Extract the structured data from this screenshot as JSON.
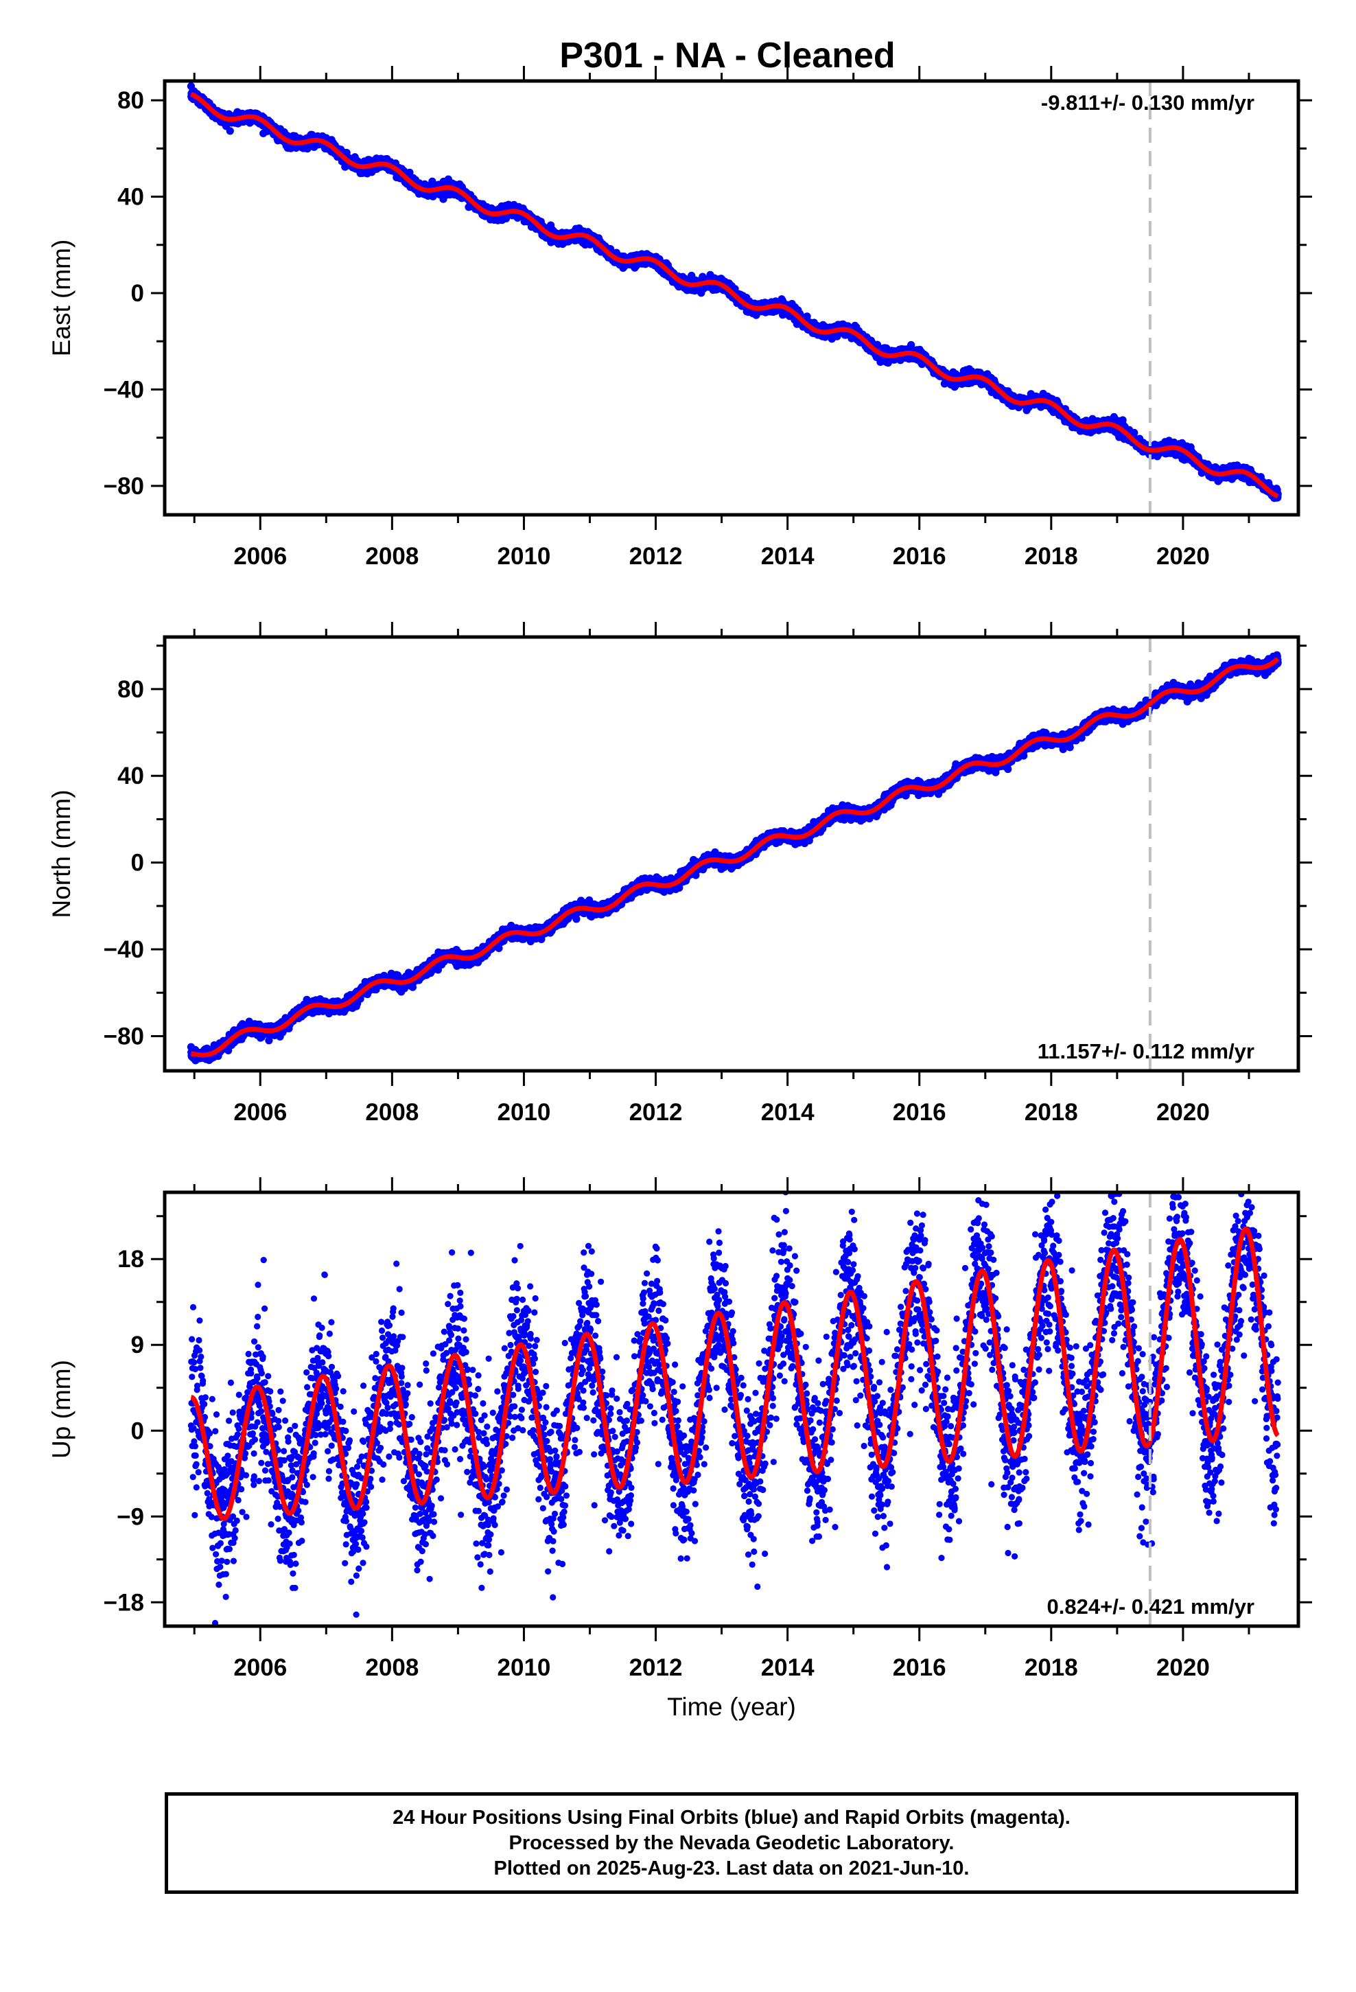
{
  "figure": {
    "title": "P301  - NA - Cleaned",
    "footer": [
      "24 Hour Positions Using Final Orbits (blue) and Rapid Orbits (magenta).",
      "Processed by the Nevada Geodetic Laboratory.",
      "Plotted on 2025-Aug-23. Last data on 2021-Jun-10."
    ]
  },
  "colors": {
    "data_points": "#0000ff",
    "model_fit": "#ff0000",
    "marker_line": "#c0c0c0",
    "frame": "#000000"
  },
  "chart_data": [
    {
      "type": "scatter",
      "component": "east",
      "ylabel": "East (mm)",
      "xlabel": "",
      "rate_label": "-9.811+/- 0.130 mm/yr",
      "rate_position": "top-right",
      "xlim": [
        2004.55,
        2021.75
      ],
      "ylim": [
        -92,
        88
      ],
      "xticks": [
        2006,
        2008,
        2010,
        2012,
        2014,
        2016,
        2018,
        2020
      ],
      "xtick_labels": [
        "2006",
        "2008",
        "2010",
        "2012",
        "2014",
        "2016",
        "2018",
        "2020"
      ],
      "yticks": [
        -80,
        -40,
        0,
        40,
        80
      ],
      "ytick_labels": [
        "−80",
        "−40",
        "0",
        "40",
        "80"
      ],
      "event_marker_x": 2019.5,
      "data_span": [
        2004.95,
        2021.44
      ],
      "fit": {
        "intercept_mm": 80.0,
        "rate_mm_per_yr": -9.811,
        "annual_amp_mm": 2.5,
        "annual_phase": 0.0,
        "scatter_mm": 1.2
      },
      "series": [
        {
          "name": "Final Orbits",
          "type": "scatter",
          "color": "#0000ff"
        },
        {
          "name": "Model",
          "type": "line",
          "color": "#ff0000"
        }
      ]
    },
    {
      "type": "scatter",
      "component": "north",
      "ylabel": "North (mm)",
      "xlabel": "",
      "rate_label": "11.157+/- 0.112 mm/yr",
      "rate_position": "bottom-right",
      "xlim": [
        2004.55,
        2021.75
      ],
      "ylim": [
        -96,
        104
      ],
      "xticks": [
        2006,
        2008,
        2010,
        2012,
        2014,
        2016,
        2018,
        2020
      ],
      "xtick_labels": [
        "2006",
        "2008",
        "2010",
        "2012",
        "2014",
        "2016",
        "2018",
        "2020"
      ],
      "yticks": [
        -80,
        -40,
        0,
        40,
        80
      ],
      "ytick_labels": [
        "−80",
        "−40",
        "0",
        "40",
        "80"
      ],
      "event_marker_x": 2019.5,
      "data_span": [
        2004.95,
        2021.44
      ],
      "fit": {
        "intercept_mm": -89.0,
        "rate_mm_per_yr": 11.157,
        "annual_amp_mm": 2.5,
        "annual_phase": 1.2,
        "scatter_mm": 1.3
      },
      "series": [
        {
          "name": "Final Orbits",
          "type": "scatter",
          "color": "#0000ff"
        },
        {
          "name": "Model",
          "type": "line",
          "color": "#ff0000"
        }
      ]
    },
    {
      "type": "scatter",
      "component": "up",
      "ylabel": "Up (mm)",
      "xlabel": "Time (year)",
      "rate_label": "0.824+/- 0.421 mm/yr",
      "rate_position": "bottom-right",
      "xlim": [
        2004.55,
        2021.75
      ],
      "ylim": [
        -20.5,
        25
      ],
      "xticks": [
        2006,
        2008,
        2010,
        2012,
        2014,
        2016,
        2018,
        2020
      ],
      "xtick_labels": [
        "2006",
        "2008",
        "2010",
        "2012",
        "2014",
        "2016",
        "2018",
        "2020"
      ],
      "yticks": [
        -18,
        -9,
        0,
        9,
        18
      ],
      "ytick_labels": [
        "−18",
        "−9",
        "0",
        "9",
        "18"
      ],
      "event_marker_x": 2019.5,
      "data_span": [
        2004.95,
        2021.44
      ],
      "fit": {
        "intercept_mm": -3.0,
        "rate_mm_per_yr": 0.824,
        "annual_amp_mm": 6.5,
        "annual_phase": 0.0,
        "scatter_mm": 3.3
      },
      "series": [
        {
          "name": "Final Orbits",
          "type": "scatter",
          "color": "#0000ff"
        },
        {
          "name": "Model",
          "type": "line",
          "color": "#ff0000"
        }
      ]
    }
  ]
}
